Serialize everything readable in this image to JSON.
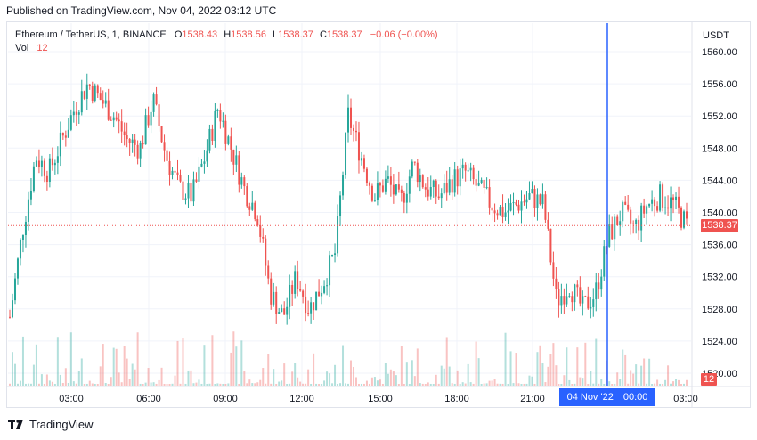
{
  "published": "Published on TradingView.com, Nov 04, 2022 03:12 UTC",
  "legend": {
    "symbol": "Ethereum / TetherUS, 1, BINANCE",
    "o_label": "O",
    "o": "1538.43",
    "h_label": "H",
    "h": "1538.56",
    "l_label": "L",
    "l": "1538.37",
    "c_label": "C",
    "c": "1538.37",
    "change": "−0.06 (−0.00%)",
    "vol_label": "Vol",
    "vol": "12"
  },
  "currency": "USDT",
  "last_price_label": "1538.37",
  "last_volume_label": "12",
  "crosshair": {
    "date": "04 Nov '22",
    "time": "00:00"
  },
  "footer_brand": "TradingView",
  "colors": {
    "up": "#26a69a",
    "down": "#ef5350",
    "crosshair": "#2962ff",
    "grid": "#f0f3fa",
    "axis_text": "#131722"
  },
  "chart_data": {
    "type": "candlestick",
    "symbol": "Ethereum / TetherUS",
    "interval": "1",
    "exchange": "BINANCE",
    "ylim": [
      1520,
      1562
    ],
    "y_ticks": [
      "1560.00",
      "1556.00",
      "1552.00",
      "1548.00",
      "1544.00",
      "1540.00",
      "1536.00",
      "1532.00",
      "1528.00",
      "1524.00",
      "1520.00"
    ],
    "x_ticks": [
      "03:00",
      "06:00",
      "09:00",
      "12:00",
      "15:00",
      "18:00",
      "21:00",
      "03:00"
    ],
    "last_close": 1538.37,
    "grid": true,
    "series": [
      {
        "x": "01:30",
        "y": 1527.0
      },
      {
        "x": "02:00",
        "y": 1538.0
      },
      {
        "x": "02:30",
        "y": 1547.0
      },
      {
        "x": "03:00",
        "y": 1545.0
      },
      {
        "x": "03:30",
        "y": 1549.0
      },
      {
        "x": "04:00",
        "y": 1553.0
      },
      {
        "x": "04:30",
        "y": 1556.0
      },
      {
        "x": "05:00",
        "y": 1554.0
      },
      {
        "x": "05:30",
        "y": 1552.0
      },
      {
        "x": "06:00",
        "y": 1549.0
      },
      {
        "x": "06:30",
        "y": 1548.0
      },
      {
        "x": "07:00",
        "y": 1554.0
      },
      {
        "x": "07:30",
        "y": 1547.0
      },
      {
        "x": "08:00",
        "y": 1543.0
      },
      {
        "x": "08:30",
        "y": 1542.0
      },
      {
        "x": "09:00",
        "y": 1547.0
      },
      {
        "x": "09:30",
        "y": 1553.0
      },
      {
        "x": "10:00",
        "y": 1548.0
      },
      {
        "x": "10:30",
        "y": 1543.0
      },
      {
        "x": "11:00",
        "y": 1540.0
      },
      {
        "x": "11:30",
        "y": 1530.0
      },
      {
        "x": "12:00",
        "y": 1527.0
      },
      {
        "x": "12:30",
        "y": 1532.0
      },
      {
        "x": "13:00",
        "y": 1528.0
      },
      {
        "x": "13:30",
        "y": 1531.0
      },
      {
        "x": "14:00",
        "y": 1535.0
      },
      {
        "x": "14:30",
        "y": 1552.0
      },
      {
        "x": "15:00",
        "y": 1547.0
      },
      {
        "x": "15:30",
        "y": 1542.0
      },
      {
        "x": "16:00",
        "y": 1544.0
      },
      {
        "x": "16:30",
        "y": 1541.0
      },
      {
        "x": "17:00",
        "y": 1546.0
      },
      {
        "x": "17:30",
        "y": 1543.0
      },
      {
        "x": "18:00",
        "y": 1542.0
      },
      {
        "x": "18:30",
        "y": 1544.0
      },
      {
        "x": "19:00",
        "y": 1545.0
      },
      {
        "x": "19:30",
        "y": 1543.0
      },
      {
        "x": "20:00",
        "y": 1541.0
      },
      {
        "x": "20:30",
        "y": 1540.0
      },
      {
        "x": "21:00",
        "y": 1541.0
      },
      {
        "x": "21:30",
        "y": 1542.0
      },
      {
        "x": "22:00",
        "y": 1541.0
      },
      {
        "x": "22:30",
        "y": 1529.0
      },
      {
        "x": "23:00",
        "y": 1531.0
      },
      {
        "x": "23:30",
        "y": 1528.0
      },
      {
        "x": "00:00",
        "y": 1530.0
      },
      {
        "x": "00:30",
        "y": 1537.0
      },
      {
        "x": "01:00",
        "y": 1540.0
      },
      {
        "x": "01:30",
        "y": 1538.0
      },
      {
        "x": "02:00",
        "y": 1541.0
      },
      {
        "x": "02:30",
        "y": 1542.0
      },
      {
        "x": "03:00",
        "y": 1541.0
      },
      {
        "x": "03:12",
        "y": 1538.37
      }
    ]
  }
}
